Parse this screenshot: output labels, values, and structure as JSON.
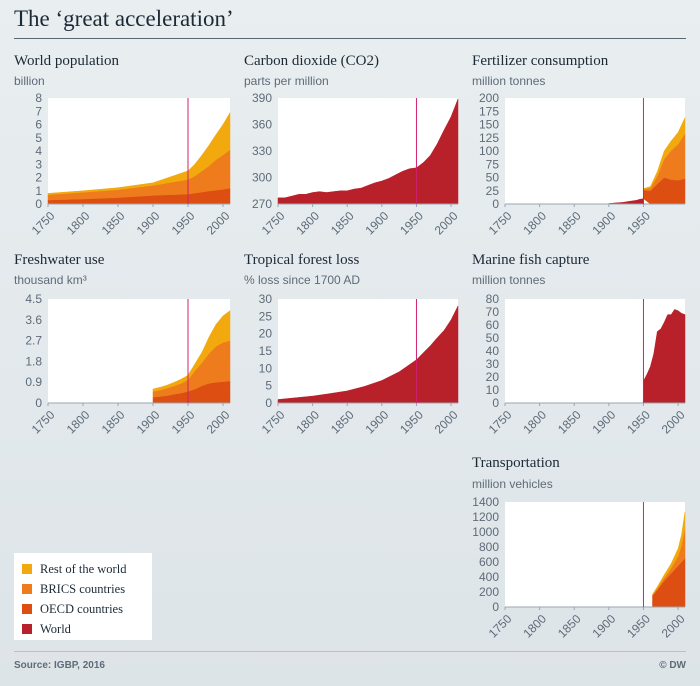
{
  "title": "The ‘great acceleration’",
  "source": "Source: IGBP, 2016",
  "credit": "© DW",
  "colors": {
    "rest": "#f2a90e",
    "brics": "#ee7c1c",
    "oecd": "#dc4e12",
    "world": "#b8202a",
    "marker": "#d0216e",
    "axis": "#9aa6b0",
    "plot_bg": "#ffffff"
  },
  "legend": [
    {
      "label": "Rest of the world",
      "color": "#f2a90e"
    },
    {
      "label": "BRICS countries",
      "color": "#ee7c1c"
    },
    {
      "label": "OECD countries",
      "color": "#dc4e12"
    },
    {
      "label": "World",
      "color": "#b8202a"
    }
  ],
  "chart_data": [
    {
      "id": "population",
      "type": "area",
      "stacked": true,
      "title": "World population",
      "ylabel": "billion",
      "xlim": [
        1750,
        2010
      ],
      "ylim": [
        0,
        8
      ],
      "xticks": [
        "1750",
        "1800",
        "1850",
        "1900",
        "1950",
        "2000"
      ],
      "yticks": [
        "0",
        "1",
        "2",
        "3",
        "4",
        "5",
        "6",
        "7",
        "8"
      ],
      "marker_x": 1950,
      "x": [
        1750,
        1800,
        1850,
        1900,
        1950,
        1960,
        1970,
        1980,
        1990,
        2000,
        2010
      ],
      "series": [
        {
          "name": "OECD countries",
          "color": "#dc4e12",
          "values": [
            0.3,
            0.38,
            0.48,
            0.65,
            0.75,
            0.82,
            0.9,
            0.98,
            1.04,
            1.1,
            1.2
          ]
        },
        {
          "name": "BRICS countries",
          "color": "#ee7c1c",
          "values": [
            0.4,
            0.5,
            0.6,
            0.75,
            1.1,
            1.3,
            1.6,
            1.9,
            2.3,
            2.6,
            2.9
          ]
        },
        {
          "name": "Rest of the world",
          "color": "#f2a90e",
          "values": [
            0.1,
            0.12,
            0.15,
            0.2,
            0.65,
            0.9,
            1.2,
            1.55,
            1.9,
            2.3,
            2.8
          ]
        }
      ]
    },
    {
      "id": "co2",
      "type": "area",
      "stacked": false,
      "title": "Carbon dioxide (CO2)",
      "ylabel": "parts per million",
      "xlim": [
        1750,
        2010
      ],
      "ylim": [
        270,
        390
      ],
      "xticks": [
        "1750",
        "1800",
        "1850",
        "1900",
        "1950",
        "2000"
      ],
      "yticks": [
        "270",
        "300",
        "330",
        "360",
        "390"
      ],
      "marker_x": 1950,
      "x": [
        1750,
        1760,
        1770,
        1780,
        1790,
        1800,
        1810,
        1820,
        1830,
        1840,
        1850,
        1860,
        1870,
        1880,
        1890,
        1900,
        1910,
        1920,
        1930,
        1940,
        1950,
        1960,
        1970,
        1980,
        1990,
        2000,
        2010
      ],
      "series": [
        {
          "name": "World",
          "color": "#b8202a",
          "values": [
            277,
            277,
            279,
            281,
            281,
            283,
            284,
            283,
            284,
            285,
            285,
            287,
            288,
            291,
            294,
            296,
            299,
            303,
            307,
            310,
            311,
            317,
            325,
            338,
            354,
            369,
            389
          ]
        }
      ]
    },
    {
      "id": "fertilizer",
      "type": "area",
      "stacked": true,
      "title": "Fertilizer consumption",
      "ylabel": "million tonnes",
      "xlim": [
        1750,
        2010
      ],
      "ylim": [
        0,
        200
      ],
      "xticks": [
        "1750",
        "1800",
        "1850",
        "1900",
        "1950"
      ],
      "yticks": [
        "0",
        "25",
        "50",
        "75",
        "100",
        "125",
        "150",
        "175",
        "200"
      ],
      "marker_x": 1950,
      "x": [
        1900,
        1910,
        1920,
        1930,
        1940,
        1945,
        1950,
        1960,
        1970,
        1980,
        1990,
        2000,
        2010
      ],
      "series": [
        {
          "name": "World",
          "color": "#b8202a",
          "values": [
            1,
            2,
            3,
            5,
            7,
            9,
            10,
            null,
            null,
            null,
            null,
            null,
            null
          ]
        },
        {
          "name": "OECD countries",
          "color": "#dc4e12",
          "values": [
            null,
            null,
            null,
            null,
            null,
            null,
            16,
            25,
            38,
            50,
            46,
            45,
            48
          ]
        },
        {
          "name": "BRICS countries",
          "color": "#ee7c1c",
          "values": [
            null,
            null,
            null,
            null,
            null,
            null,
            2,
            5,
            15,
            35,
            55,
            68,
            85
          ]
        },
        {
          "name": "Rest of the world",
          "color": "#f2a90e",
          "values": [
            null,
            null,
            null,
            null,
            null,
            null,
            1,
            3,
            8,
            15,
            18,
            22,
            30
          ]
        }
      ]
    },
    {
      "id": "freshwater",
      "type": "area",
      "stacked": true,
      "title": "Freshwater use",
      "ylabel": "thousand km³",
      "xlim": [
        1750,
        2010
      ],
      "ylim": [
        0,
        4.5
      ],
      "xticks": [
        "1750",
        "1800",
        "1850",
        "1900",
        "1950",
        "2000"
      ],
      "yticks": [
        "0",
        "0.9",
        "1.8",
        "2.7",
        "3.6",
        "4.5"
      ],
      "marker_x": 1950,
      "x": [
        1900,
        1910,
        1920,
        1930,
        1940,
        1950,
        1960,
        1970,
        1980,
        1990,
        2000,
        2010
      ],
      "series": [
        {
          "name": "OECD countries",
          "color": "#dc4e12",
          "values": [
            0.25,
            0.28,
            0.32,
            0.38,
            0.43,
            0.5,
            0.6,
            0.75,
            0.85,
            0.9,
            0.92,
            0.95
          ]
        },
        {
          "name": "BRICS countries",
          "color": "#ee7c1c",
          "values": [
            0.25,
            0.28,
            0.32,
            0.36,
            0.42,
            0.5,
            0.8,
            1.0,
            1.3,
            1.55,
            1.7,
            1.75
          ]
        },
        {
          "name": "Rest of the world",
          "color": "#f2a90e",
          "values": [
            0.1,
            0.12,
            0.13,
            0.15,
            0.18,
            0.2,
            0.3,
            0.45,
            0.7,
            0.95,
            1.15,
            1.3
          ]
        }
      ]
    },
    {
      "id": "forest",
      "type": "area",
      "stacked": false,
      "title": "Tropical forest loss",
      "ylabel": "% loss since 1700 AD",
      "xlim": [
        1750,
        2010
      ],
      "ylim": [
        0,
        30
      ],
      "xticks": [
        "1750",
        "1800",
        "1850",
        "1900",
        "1950",
        "2000"
      ],
      "yticks": [
        "0",
        "5",
        "10",
        "15",
        "20",
        "25",
        "30"
      ],
      "marker_x": 1950,
      "x": [
        1750,
        1775,
        1800,
        1825,
        1850,
        1875,
        1900,
        1925,
        1950,
        1960,
        1970,
        1980,
        1990,
        2000,
        2010
      ],
      "series": [
        {
          "name": "World",
          "color": "#b8202a",
          "values": [
            1,
            1.5,
            2,
            2.7,
            3.5,
            4.8,
            6.5,
            9,
            12.5,
            14.5,
            16.5,
            18.8,
            21,
            24,
            28
          ]
        }
      ]
    },
    {
      "id": "fish",
      "type": "area",
      "stacked": false,
      "title": "Marine fish capture",
      "ylabel": "million tonnes",
      "xlim": [
        1750,
        2010
      ],
      "ylim": [
        0,
        80
      ],
      "xticks": [
        "1750",
        "1800",
        "1850",
        "1900",
        "1950",
        "2000"
      ],
      "yticks": [
        "0",
        "10",
        "20",
        "30",
        "40",
        "50",
        "60",
        "70",
        "80"
      ],
      "marker_x": 1950,
      "x": [
        1950,
        1955,
        1960,
        1965,
        1970,
        1975,
        1980,
        1985,
        1990,
        1995,
        2000,
        2005,
        2010
      ],
      "series": [
        {
          "name": "World",
          "color": "#b8202a",
          "values": [
            17,
            22,
            28,
            38,
            55,
            57,
            62,
            68,
            68,
            72,
            71,
            69,
            68
          ]
        }
      ]
    },
    {
      "id": "transport",
      "type": "area",
      "stacked": true,
      "title": "Transportation",
      "ylabel": "million vehicles",
      "xlim": [
        1750,
        2010
      ],
      "ylim": [
        0,
        1400
      ],
      "xticks": [
        "1750",
        "1800",
        "1850",
        "1900",
        "1950",
        "2000"
      ],
      "yticks": [
        "0",
        "200",
        "400",
        "600",
        "800",
        "1000",
        "1200",
        "1400"
      ],
      "marker_x": 1950,
      "x": [
        1963,
        1970,
        1980,
        1990,
        2000,
        2005,
        2010
      ],
      "series": [
        {
          "name": "OECD countries",
          "color": "#dc4e12",
          "values": [
            150,
            230,
            350,
            450,
            550,
            600,
            650
          ]
        },
        {
          "name": "BRICS countries",
          "color": "#ee7c1c",
          "values": [
            10,
            20,
            40,
            70,
            130,
            220,
            400
          ]
        },
        {
          "name": "Rest of the world",
          "color": "#f2a90e",
          "values": [
            10,
            20,
            40,
            60,
            100,
            140,
            220
          ]
        }
      ]
    }
  ]
}
